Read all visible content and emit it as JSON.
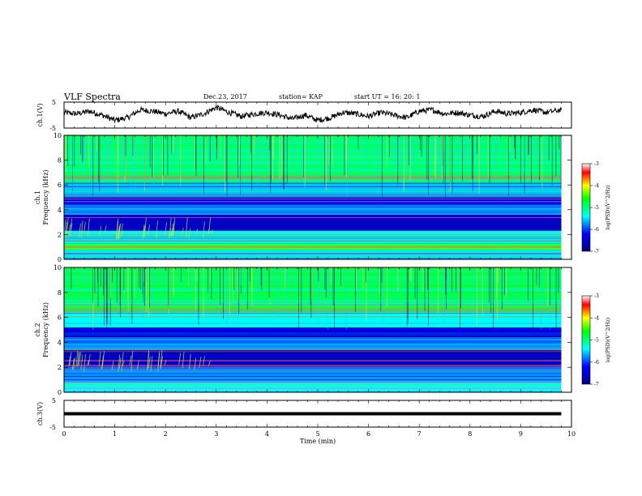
{
  "header": {
    "title": "VLF Spectra",
    "date": "Dec.23, 2017",
    "station": "station= KAP",
    "start": "start UT =  16: 20: 1"
  },
  "colors": {
    "spectrum_low": "#00008b",
    "spectrum_mid": "#00c8ff",
    "spectrum_bg": "#46e06e",
    "spectrum_high": "#ff0000"
  },
  "chart_data": [
    {
      "type": "line",
      "panel": "ch1-waveform",
      "ylabel": "ch.1(V)",
      "ylim": [
        -5,
        5
      ],
      "yticks": [
        "5",
        "-5"
      ],
      "xlim": [
        0,
        10
      ],
      "x": [
        0,
        0.25,
        0.5,
        0.75,
        1.0,
        1.25,
        1.5,
        1.75,
        2.0,
        2.25,
        2.5,
        2.75,
        3.0,
        3.25,
        3.5,
        3.75,
        4.0,
        4.25,
        4.5,
        4.75,
        5.0,
        5.25,
        5.5,
        5.75,
        6.0,
        6.25,
        6.5,
        6.75,
        7.0,
        7.25,
        7.5,
        7.75,
        8.0,
        8.25,
        8.5,
        8.75,
        9.0,
        9.25,
        9.5,
        9.8
      ],
      "values": [
        1,
        0.5,
        1.5,
        0,
        -2,
        -1,
        2,
        1.5,
        0.5,
        1.5,
        -1,
        0.5,
        3,
        1,
        -0.5,
        0.5,
        1,
        0,
        -1.5,
        0,
        -2,
        -1,
        1,
        0.5,
        -0.5,
        1,
        0,
        -1,
        1.5,
        2,
        0.5,
        1,
        0,
        -0.5,
        1.5,
        0.5,
        1,
        2,
        1,
        2
      ]
    },
    {
      "type": "heatmap",
      "panel": "ch1-spectrogram",
      "ylabel": "ch.1 Frequency (kHz)",
      "ylim": [
        0,
        10
      ],
      "yticks": [
        "0",
        "2",
        "4",
        "6",
        "8",
        "10"
      ],
      "xlim": [
        0,
        10
      ],
      "colorbar": {
        "label": "log(PSD)(V^2/Hz)",
        "range": [
          -7,
          -3
        ],
        "ticks": [
          "-3",
          "-4",
          "-5",
          "-6",
          "-7"
        ]
      },
      "bands": [
        {
          "from": 0,
          "to": 0.8,
          "level": -5.5
        },
        {
          "from": 0.8,
          "to": 1.2,
          "level": -4.5
        },
        {
          "from": 1.2,
          "to": 2.3,
          "level": -5.3
        },
        {
          "from": 2.3,
          "to": 3.6,
          "level": -6.6
        },
        {
          "from": 3.6,
          "to": 4.4,
          "level": -5.8
        },
        {
          "from": 4.4,
          "to": 5.0,
          "level": -6.3
        },
        {
          "from": 5.0,
          "to": 6.2,
          "level": -5.6
        },
        {
          "from": 6.2,
          "to": 10,
          "level": -5.0
        }
      ]
    },
    {
      "type": "heatmap",
      "panel": "ch2-spectrogram",
      "ylabel": "ch.2 Frequency (kHz)",
      "ylim": [
        0,
        10
      ],
      "yticks": [
        "0",
        "2",
        "4",
        "6",
        "8",
        "10"
      ],
      "xlim": [
        0,
        10
      ],
      "colorbar": {
        "label": "log(PSD)(V^2/Hz)",
        "range": [
          -7,
          -3
        ],
        "ticks": [
          "-3",
          "-4",
          "-5",
          "-6",
          "-7"
        ]
      },
      "bands": [
        {
          "from": 0,
          "to": 0.8,
          "level": -5.4
        },
        {
          "from": 0.8,
          "to": 2.0,
          "level": -5.7
        },
        {
          "from": 2.0,
          "to": 2.6,
          "level": -6.5
        },
        {
          "from": 2.6,
          "to": 3.4,
          "level": -6.7
        },
        {
          "from": 3.4,
          "to": 4.4,
          "level": -5.8
        },
        {
          "from": 4.4,
          "to": 5.2,
          "level": -6.4
        },
        {
          "from": 5.2,
          "to": 6.4,
          "level": -5.4
        },
        {
          "from": 6.4,
          "to": 10,
          "level": -4.9
        }
      ]
    },
    {
      "type": "line",
      "panel": "ch3-waveform",
      "ylabel": "ch.3(V)",
      "ylim": [
        -5,
        5
      ],
      "yticks": [
        "5",
        "-5"
      ],
      "xlim": [
        0,
        10
      ],
      "x": [
        0,
        9.8
      ],
      "values": [
        0,
        0
      ]
    }
  ],
  "xaxis": {
    "label": "Time (min)",
    "ticks": [
      "0",
      "1",
      "2",
      "3",
      "4",
      "5",
      "6",
      "7",
      "8",
      "9",
      "10"
    ]
  }
}
